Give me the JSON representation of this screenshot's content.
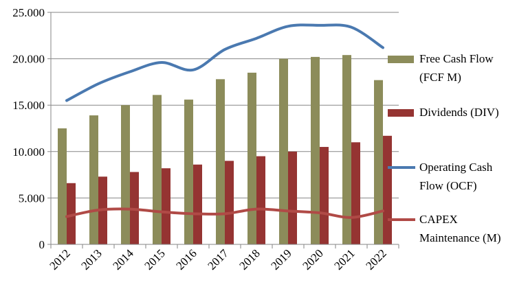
{
  "colors": {
    "fcf": "#8c8c5a",
    "div": "#953432",
    "ocf": "#4a79b0",
    "capex": "#b04a46",
    "axis": "#868686",
    "grid": "#868686"
  },
  "chart_data": {
    "type": "bar",
    "title": "",
    "xlabel": "",
    "ylabel": "",
    "ylim": [
      0,
      25000
    ],
    "y_ticks": [
      "0",
      "5.000",
      "10.000",
      "15.000",
      "20.000",
      "25.000"
    ],
    "grid": true,
    "legend_position": "right",
    "categories": [
      "2012",
      "2013",
      "2014",
      "2015",
      "2016",
      "2017",
      "2018",
      "2019",
      "2020",
      "2021",
      "2022"
    ],
    "series": [
      {
        "name": "Free Cash Flow (FCF M)",
        "kind": "bar",
        "color_key": "fcf",
        "values": [
          12500,
          13900,
          15000,
          16100,
          15600,
          17800,
          18500,
          20000,
          20200,
          20400,
          17700
        ]
      },
      {
        "name": "Dividends (DIV)",
        "kind": "bar",
        "color_key": "div",
        "values": [
          6600,
          7300,
          7800,
          8200,
          8600,
          9000,
          9500,
          10000,
          10500,
          11000,
          11700
        ]
      },
      {
        "name": "Operating Cash Flow (OCF)",
        "kind": "line",
        "color_key": "ocf",
        "values": [
          15500,
          17300,
          18600,
          19600,
          18800,
          21000,
          22200,
          23500,
          23600,
          23400,
          21200
        ]
      },
      {
        "name": "CAPEX Maintenance (M)",
        "kind": "line",
        "color_key": "capex",
        "values": [
          3000,
          3700,
          3800,
          3500,
          3300,
          3300,
          3800,
          3600,
          3400,
          2900,
          3600
        ]
      }
    ]
  },
  "legend": {
    "items": [
      {
        "line1": "Free Cash Flow",
        "line2": "(FCF M)"
      },
      {
        "line1": "Dividends (DIV)",
        "line2": ""
      },
      {
        "line1": "Operating Cash",
        "line2": "Flow (OCF)"
      },
      {
        "line1": "CAPEX",
        "line2": "Maintenance (M)"
      }
    ]
  }
}
